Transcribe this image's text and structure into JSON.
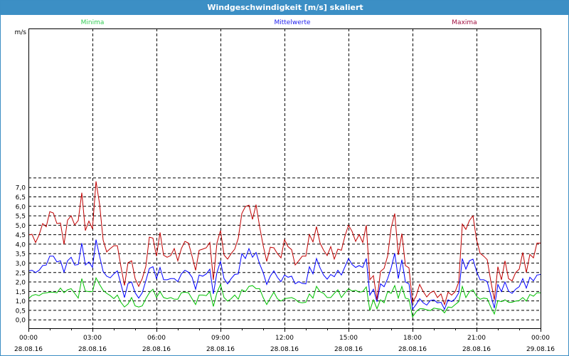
{
  "window": {
    "title": "Windgeschwindigkeit [m/s] skaliert"
  },
  "chart_data": {
    "type": "line",
    "title": "Windgeschwindigkeit [m/s] skaliert",
    "ylabel": "m/s",
    "xlabel": "",
    "ylim": [
      0,
      7.5
    ],
    "xlim_hours": [
      0,
      24
    ],
    "x_step_minutes": 10,
    "grid": true,
    "legend_placement": "top",
    "y_ticks": [
      0,
      0.5,
      1,
      1.5,
      2,
      2.5,
      3,
      3.5,
      4,
      4.5,
      5,
      5.5,
      6,
      6.5,
      7
    ],
    "y_tick_labels": [
      "0,0",
      "0,5",
      "1,0",
      "1,5",
      "2,0",
      "2,5",
      "3,0",
      "3,5",
      "4,0",
      "4,5",
      "5,0",
      "5,5",
      "6,0",
      "6,5",
      "7,0"
    ],
    "x_ticks_hours": [
      0,
      3,
      6,
      9,
      12,
      15,
      18,
      21,
      24
    ],
    "x_tick_labels": [
      {
        "time": "00:00",
        "date": "28.08.16"
      },
      {
        "time": "03:00",
        "date": "28.08.16"
      },
      {
        "time": "06:00",
        "date": "28.08.16"
      },
      {
        "time": "09:00",
        "date": "28.08.16"
      },
      {
        "time": "12:00",
        "date": "28.08.16"
      },
      {
        "time": "15:00",
        "date": "28.08.16"
      },
      {
        "time": "18:00",
        "date": "28.08.16"
      },
      {
        "time": "21:00",
        "date": "28.08.16"
      },
      {
        "time": "00:00",
        "date": "29.08.16"
      }
    ],
    "series": [
      {
        "name": "Minima",
        "color": "#00c000",
        "legend_color": "#33cc55",
        "values": [
          1.1,
          1.26,
          1.32,
          1.26,
          1.38,
          1.41,
          1.44,
          1.44,
          1.41,
          1.66,
          1.41,
          1.57,
          1.63,
          1.38,
          1.13,
          2.16,
          1.5,
          1.47,
          1.47,
          2.2,
          1.85,
          1.54,
          1.38,
          1.26,
          1.1,
          1.29,
          0.91,
          0.66,
          0.82,
          1.16,
          0.72,
          0.66,
          0.72,
          1.1,
          1.41,
          1.6,
          1.16,
          1.47,
          1.16,
          1.1,
          1.16,
          1.07,
          1.07,
          1.41,
          1.44,
          1.41,
          1.1,
          0.79,
          1.29,
          1.29,
          1.26,
          1.47,
          0.69,
          1.41,
          1.85,
          1.16,
          0.97,
          1.1,
          1.29,
          1.07,
          1.57,
          1.47,
          1.75,
          1.79,
          1.63,
          1.63,
          1.16,
          0.79,
          1.13,
          1.44,
          1.1,
          0.97,
          1.1,
          1.13,
          1.16,
          1.07,
          0.91,
          0.88,
          0.91,
          1.35,
          1.13,
          1.75,
          1.47,
          1.38,
          1.16,
          1.16,
          1.38,
          1.57,
          1.16,
          1.41,
          1.63,
          1.5,
          1.54,
          1.44,
          1.47,
          1.72,
          0.47,
          1.04,
          0.57,
          1.04,
          0.88,
          1.47,
          1.38,
          1.79,
          1.13,
          1.75,
          1.13,
          1.07,
          0.13,
          0.41,
          0.57,
          0.57,
          0.51,
          0.47,
          0.6,
          0.57,
          0.54,
          0.35,
          0.66,
          0.63,
          0.79,
          0.94,
          1.75,
          1.16,
          1.47,
          1.57,
          1.23,
          1.07,
          1.13,
          1.1,
          0.66,
          0.29,
          1.0,
          0.94,
          1.04,
          0.91,
          0.91,
          0.97,
          1.0,
          1.16,
          0.97,
          1.32,
          1.23,
          1.41,
          1.41
        ]
      },
      {
        "name": "Mittelwerte",
        "color": "#0000ff",
        "legend_color": "#2020ee",
        "values": [
          2.57,
          2.6,
          2.48,
          2.6,
          2.85,
          2.88,
          3.35,
          3.35,
          3.04,
          3.1,
          2.5,
          3.1,
          3.29,
          2.88,
          2.9,
          4.04,
          2.88,
          3.04,
          2.75,
          4.22,
          3.35,
          2.54,
          2.29,
          2.2,
          2.41,
          2.57,
          1.88,
          1.16,
          1.9,
          1.98,
          1.41,
          1.13,
          1.41,
          2.04,
          2.7,
          2.79,
          2.16,
          2.75,
          2.1,
          2.1,
          2.16,
          2.16,
          2.0,
          2.41,
          2.6,
          2.5,
          2.23,
          1.6,
          2.35,
          2.29,
          2.41,
          2.66,
          1.35,
          2.48,
          3.07,
          2.16,
          1.88,
          2.16,
          2.38,
          2.41,
          3.48,
          3.22,
          3.75,
          3.29,
          3.54,
          2.94,
          2.48,
          1.85,
          2.29,
          2.57,
          2.23,
          2.0,
          2.35,
          2.23,
          2.29,
          1.88,
          2.0,
          1.91,
          1.88,
          2.79,
          2.41,
          3.22,
          2.73,
          2.35,
          2.13,
          2.38,
          2.26,
          2.6,
          2.35,
          2.79,
          3.22,
          2.91,
          2.75,
          2.85,
          2.75,
          3.22,
          1.29,
          1.6,
          0.94,
          1.88,
          1.73,
          2.16,
          2.73,
          3.5,
          2.16,
          3.16,
          1.98,
          1.88,
          0.54,
          0.79,
          1.1,
          0.88,
          0.76,
          1.0,
          1.04,
          0.88,
          0.91,
          0.54,
          1.04,
          0.94,
          1.1,
          1.41,
          3.22,
          2.66,
          3.1,
          3.19,
          2.54,
          2.1,
          2.1,
          2.0,
          1.29,
          0.6,
          1.85,
          1.47,
          1.98,
          1.5,
          1.38,
          1.6,
          1.73,
          2.16,
          1.66,
          2.23,
          2.04,
          2.35,
          2.38
        ]
      },
      {
        "name": "Maxima",
        "color": "#c00000",
        "legend_color": "#a01040",
        "values": [
          4.47,
          4.5,
          4.07,
          4.47,
          5.07,
          4.9,
          5.7,
          5.63,
          5.07,
          5.1,
          3.97,
          5.25,
          5.48,
          5.0,
          5.23,
          6.7,
          4.7,
          5.2,
          4.8,
          7.3,
          6.1,
          4.2,
          3.57,
          3.75,
          3.9,
          3.9,
          2.8,
          1.8,
          3.0,
          3.1,
          2.16,
          1.75,
          2.16,
          2.8,
          4.35,
          4.3,
          3.35,
          4.6,
          3.4,
          3.29,
          3.38,
          3.75,
          3.1,
          3.75,
          4.13,
          4.04,
          3.35,
          2.6,
          3.66,
          3.72,
          3.79,
          4.07,
          2.1,
          4.04,
          4.7,
          3.41,
          3.19,
          3.48,
          3.72,
          4.29,
          5.6,
          5.97,
          6.04,
          5.29,
          6.07,
          4.91,
          3.91,
          3.07,
          3.82,
          3.79,
          3.48,
          3.26,
          4.22,
          3.85,
          3.69,
          2.88,
          3.1,
          3.35,
          3.35,
          4.49,
          4.1,
          4.91,
          4.04,
          3.66,
          3.38,
          3.85,
          3.19,
          3.72,
          3.66,
          4.41,
          4.98,
          4.66,
          4.13,
          4.49,
          4.07,
          4.98,
          2.1,
          2.32,
          1.04,
          2.54,
          2.7,
          3.35,
          4.85,
          5.6,
          3.41,
          4.54,
          2.85,
          2.73,
          0.91,
          1.23,
          1.85,
          1.48,
          1.19,
          1.41,
          1.5,
          1.16,
          1.35,
          0.79,
          1.44,
          1.29,
          1.47,
          1.98,
          5.04,
          4.76,
          5.23,
          5.48,
          4.22,
          3.5,
          3.35,
          3.16,
          2.04,
          1.04,
          2.79,
          2.1,
          3.1,
          2.16,
          2.04,
          2.48,
          2.66,
          3.54,
          2.48,
          3.44,
          3.26,
          4.04,
          4.04
        ]
      }
    ]
  }
}
